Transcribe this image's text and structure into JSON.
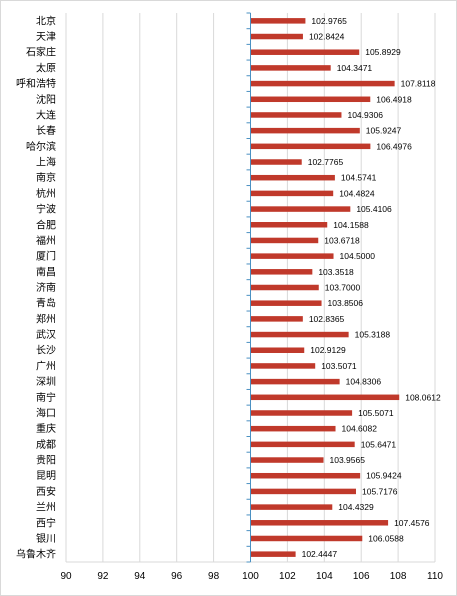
{
  "chart_data": {
    "type": "bar",
    "orientation": "horizontal",
    "categories": [
      "北京",
      "天津",
      "石家庄",
      "太原",
      "呼和浩特",
      "沈阳",
      "大连",
      "长春",
      "哈尔滨",
      "上海",
      "南京",
      "杭州",
      "宁波",
      "合肥",
      "福州",
      "厦门",
      "南昌",
      "济南",
      "青岛",
      "郑州",
      "武汉",
      "长沙",
      "广州",
      "深圳",
      "南宁",
      "海口",
      "重庆",
      "成都",
      "贵阳",
      "昆明",
      "西安",
      "兰州",
      "西宁",
      "银川",
      "乌鲁木齐"
    ],
    "values": [
      102.9765,
      102.8424,
      105.8929,
      104.3471,
      107.8118,
      106.4918,
      104.9306,
      105.9247,
      106.4976,
      102.7765,
      104.5741,
      104.4824,
      105.4106,
      104.1588,
      103.6718,
      104.5,
      103.3518,
      103.7,
      103.8506,
      102.8365,
      105.3188,
      102.9129,
      103.5071,
      104.8306,
      108.0612,
      105.5071,
      104.6082,
      105.6471,
      103.9565,
      105.9424,
      105.7176,
      104.4329,
      107.4576,
      106.0588,
      102.4447
    ],
    "value_labels": [
      "102.9765",
      "102.8424",
      "105.8929",
      "104.3471",
      "107.8118",
      "106.4918",
      "104.9306",
      "105.9247",
      "106.4976",
      "102.7765",
      "104.5741",
      "104.4824",
      "105.4106",
      "104.1588",
      "103.6718",
      "104.5000",
      "103.3518",
      "103.7000",
      "103.8506",
      "102.8365",
      "105.3188",
      "102.9129",
      "103.5071",
      "104.8306",
      "108.0612",
      "105.5071",
      "104.6082",
      "105.6471",
      "103.9565",
      "105.9424",
      "105.7176",
      "104.4329",
      "107.4576",
      "106.0588",
      "102.4447"
    ],
    "baseline": 100,
    "xlim": [
      90,
      110
    ],
    "xticks": [
      "90",
      "92",
      "94",
      "96",
      "98",
      "100",
      "102",
      "104",
      "106",
      "108",
      "110"
    ],
    "title": "",
    "xlabel": "",
    "ylabel": "",
    "grid": "vertical",
    "legend": "none",
    "bar_color": "#c0392b",
    "grid_color": "#d9d9d9",
    "axis_color": "#4a90c2"
  }
}
